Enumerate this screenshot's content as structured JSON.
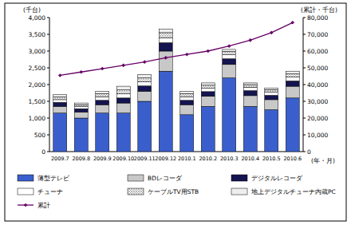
{
  "chart_data": {
    "type": "bar",
    "stacked": true,
    "grid": false,
    "legend": "bottom",
    "y_label": "(千台)",
    "y2_label": "(累計・千台)",
    "x_label": "(年・月)",
    "categories": [
      "2009.7",
      "2009.8",
      "2009.9",
      "2009.10",
      "2009.11",
      "2009.12",
      "2010.1",
      "2010.2",
      "2010.3",
      "2010.4",
      "2010.5",
      "2010.6"
    ],
    "ylim": [
      0,
      4000
    ],
    "yticks": [
      0,
      {
        "value": 500,
        "label": "500"
      },
      {
        "value": 1000,
        "label": "1,000"
      },
      {
        "value": 1500,
        "label": "1,500"
      },
      {
        "value": 2000,
        "label": "2,000"
      },
      {
        "value": 2500,
        "label": "2,500"
      },
      {
        "value": 3000,
        "label": "3,000"
      },
      {
        "value": 3500,
        "label": "3,500"
      },
      {
        "value": 4000,
        "label": "4,000"
      }
    ],
    "y2lim": [
      0,
      80000
    ],
    "y2ticks": [
      0,
      {
        "value": 10000,
        "label": "10,000"
      },
      {
        "value": 20000,
        "label": "20,000"
      },
      {
        "value": 30000,
        "label": "30,000"
      },
      {
        "value": 40000,
        "label": "40,000"
      },
      {
        "value": 50000,
        "label": "50,000"
      },
      {
        "value": 60000,
        "label": "60,000"
      },
      {
        "value": 70000,
        "label": "70,000"
      },
      {
        "value": 80000,
        "label": "80,000"
      }
    ],
    "series": [
      {
        "name": "薄型テレビ",
        "color": "#3a5fcd",
        "values": [
          1150,
          1000,
          1150,
          1150,
          1500,
          2400,
          1100,
          1350,
          2200,
          1350,
          1250,
          1600
        ]
      },
      {
        "name": "BDレコーダ",
        "color": "#c8c8c8",
        "values": [
          200,
          180,
          250,
          300,
          300,
          600,
          300,
          300,
          400,
          320,
          300,
          350
        ]
      },
      {
        "name": "デジタルレコーダ",
        "color": "#141450",
        "values": [
          120,
          100,
          130,
          150,
          160,
          250,
          130,
          140,
          170,
          150,
          130,
          160
        ]
      },
      {
        "name": "チューナ",
        "color": "#ffffff",
        "values": [
          80,
          60,
          100,
          120,
          120,
          150,
          100,
          100,
          120,
          100,
          90,
          110
        ]
      },
      {
        "name": "ケーブルTV用STB",
        "color": "#9a9a9a",
        "line_style": "hatched",
        "values": [
          80,
          60,
          100,
          120,
          120,
          150,
          100,
          90,
          100,
          80,
          80,
          100
        ]
      },
      {
        "name": "地上デジタルチューナ内蔵PC",
        "color": "#eeeeee",
        "values": [
          70,
          50,
          70,
          110,
          100,
          100,
          70,
          70,
          60,
          50,
          50,
          80
        ]
      },
      {
        "name": "累計",
        "type": "line",
        "axis": "y2",
        "color": "#660066",
        "marker": "diamond",
        "values": [
          45500,
          47500,
          49500,
          51500,
          53500,
          56000,
          58000,
          60000,
          63000,
          66500,
          71000,
          77000
        ]
      }
    ]
  }
}
